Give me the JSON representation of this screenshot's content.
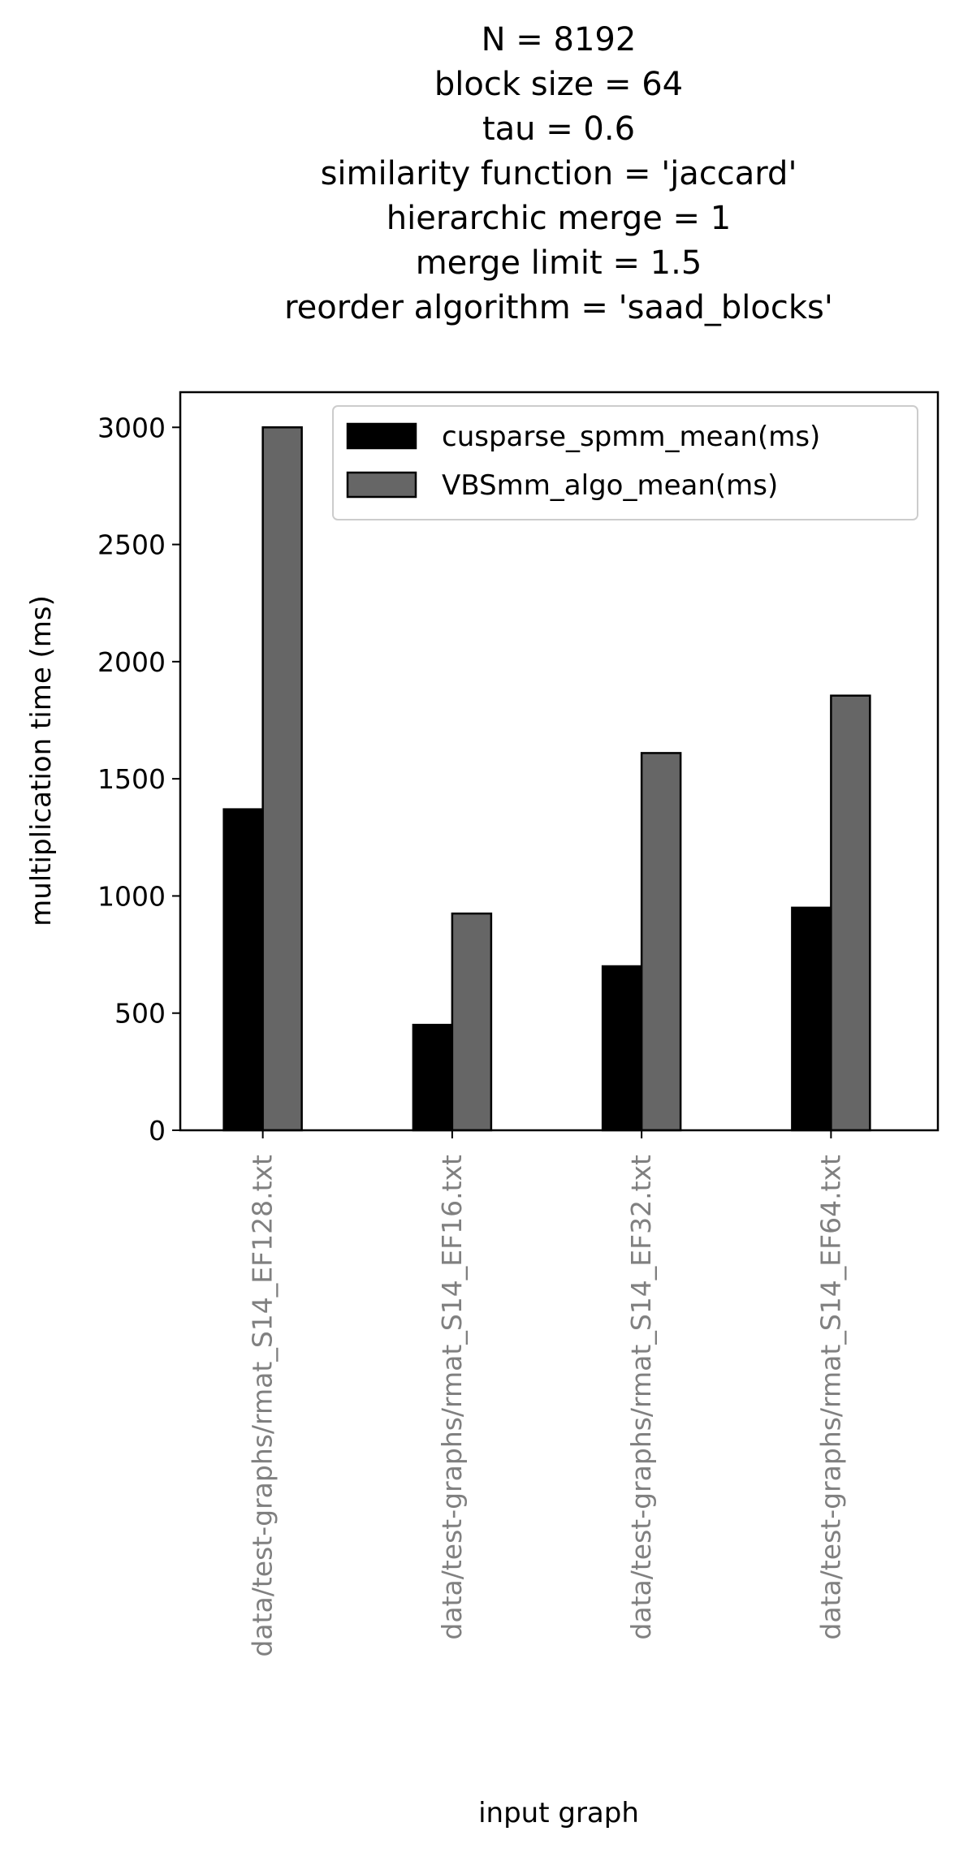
{
  "chart_data": {
    "type": "bar",
    "title_lines": [
      "N = 8192",
      "block size = 64",
      "tau = 0.6",
      "similarity function = 'jaccard'",
      "hierarchic merge = 1",
      "merge limit = 1.5",
      "reorder algorithm = 'saad_blocks'"
    ],
    "xlabel": "input graph",
    "ylabel": "multiplication time (ms)",
    "categories": [
      "data/test-graphs/rmat_S14_EF128.txt",
      "data/test-graphs/rmat_S14_EF16.txt",
      "data/test-graphs/rmat_S14_EF32.txt",
      "data/test-graphs/rmat_S14_EF64.txt"
    ],
    "series": [
      {
        "name": "cusparse_spmm_mean(ms)",
        "color": "#000000",
        "values": [
          1370,
          450,
          700,
          950
        ]
      },
      {
        "name": "VBSmm_algo_mean(ms)",
        "color": "#666666",
        "values": [
          3000,
          925,
          1610,
          1855
        ]
      }
    ],
    "ylim": [
      0,
      3150
    ],
    "yticks": [
      0,
      500,
      1000,
      1500,
      2000,
      2500,
      3000
    ],
    "ytick_labels": [
      "0",
      "500",
      "1000",
      "1500",
      "2000",
      "2500",
      "3000"
    ],
    "tick_label_color": "#808080",
    "grid": false,
    "legend_position": "top-right"
  }
}
